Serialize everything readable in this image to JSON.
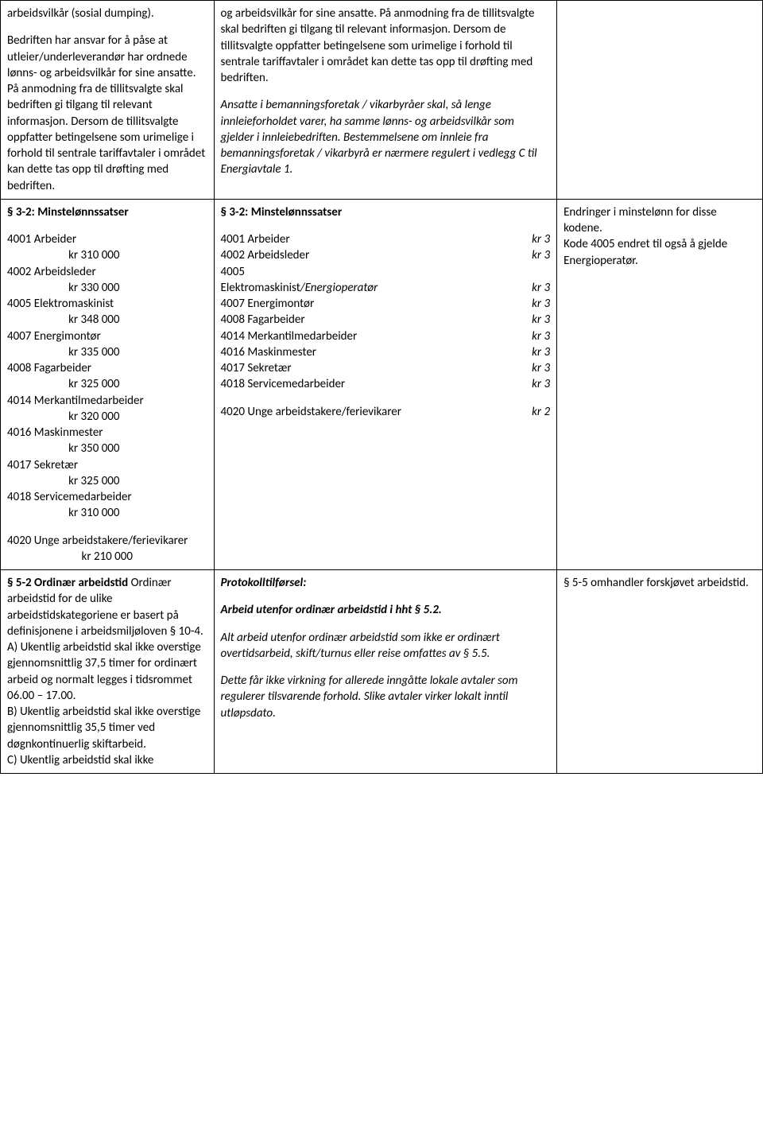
{
  "row1": {
    "col1_p1": "arbeidsvilkår (sosial dumping).",
    "col1_p2": "Bedriften har ansvar for å påse at utleier/underleverandør har ordnede lønns- og arbeidsvilkår for sine ansatte. På anmodning fra de tillitsvalgte skal bedriften gi tilgang til relevant informasjon. Dersom de tillitsvalgte oppfatter betingelsene som urimelige i forhold til sentrale tariffavtaler i området kan dette tas opp til drøfting med bedriften.",
    "col2_p1": "og arbeidsvilkår for sine ansatte. På anmodning fra de tillitsvalgte skal bedriften gi tilgang til relevant informasjon. Dersom de tillitsvalgte oppfatter betingelsene som urimelige i forhold til sentrale tariffavtaler i området kan dette tas opp til drøfting med bedriften.",
    "col2_p2": "Ansatte i bemanningsforetak / vikarbyråer skal, så lenge innleieforholdet varer, ha samme lønns- og arbeidsvilkår som gjelder i innleiebedriften. Bestemmelsene om innleie fra bemanningsforetak / vikarbyrå er nærmere regulert i vedlegg C til Energiavtale 1."
  },
  "row2": {
    "heading": "§ 3-2: Minstelønnssatser",
    "left_wages": [
      {
        "label": "4001 Arbeider",
        "value": "kr 310 000"
      },
      {
        "label": "4002 Arbeidsleder",
        "value": "kr 330 000"
      },
      {
        "label": "4005 Elektromaskinist",
        "value": "kr 348 000"
      },
      {
        "label": "4007 Energimontør",
        "value": "kr 335 000"
      },
      {
        "label": "4008 Fagarbeider",
        "value": "kr 325 000"
      },
      {
        "label": "4014 Merkantilmedarbeider",
        "value": "kr 320 000"
      },
      {
        "label": "4016 Maskinmester",
        "value": "kr 350 000"
      },
      {
        "label": "4017 Sekretær",
        "value": "kr 325 000"
      },
      {
        "label": "4018 Servicemedarbeider",
        "value": "kr 310 000"
      }
    ],
    "left_extra_label": "4020 Unge arbeidstakere/ferievikarer",
    "left_extra_value": "kr 210 000",
    "mid_wages": [
      {
        "label": "4001 Arbeider",
        "value": "kr 3"
      },
      {
        "label": "4002 Arbeidsleder",
        "value": "kr 3"
      }
    ],
    "mid_4005a": "4005",
    "mid_4005b_pre": "Elektromaskinist",
    "mid_4005b_ital": "/Energioperatør",
    "mid_4005_val": "kr 3",
    "mid_wages2": [
      {
        "label": "4007 Energimontør",
        "value": "kr 3"
      },
      {
        "label": "4008 Fagarbeider",
        "value": "kr 3"
      },
      {
        "label": "4014 Merkantilmedarbeider",
        "value": "kr 3"
      },
      {
        "label": "4016 Maskinmester",
        "value": "kr 3"
      },
      {
        "label": "4017 Sekretær",
        "value": "kr 3"
      },
      {
        "label": "4018 Servicemedarbeider",
        "value": "kr 3"
      }
    ],
    "mid_extra_label": "4020 Unge arbeidstakere/ferievikarer",
    "mid_extra_value": "kr 2",
    "col3_p1": "Endringer i minstelønn for disse kodene.",
    "col3_p2": "Kode 4005 endret til også å gjelde Energioperatør."
  },
  "row3": {
    "col1_heading": "§ 5-2 Ordinær arbeidstid",
    "col1_p1": "Ordinær arbeidstid for de ulike arbeidstidskategoriene er basert på definisjonene i arbeidsmiljøloven § 10-4.",
    "col1_p2": "A) Ukentlig arbeidstid skal ikke overstige gjennomsnittlig 37,5 timer for ordinært arbeid og normalt legges i tidsrommet 06.00 – 17.00.",
    "col1_p3": "B) Ukentlig arbeidstid skal ikke overstige gjennomsnittlig 35,5 timer ved døgnkontinuerlig skiftarbeid.",
    "col1_p4": "C) Ukentlig arbeidstid skal ikke",
    "col2_h1": "Protokolltilførsel:",
    "col2_h2": "Arbeid utenfor ordinær arbeidstid i hht § 5.2.",
    "col2_p1": "Alt arbeid utenfor ordinær arbeidstid som ikke er ordinært overtidsarbeid, skift/turnus eller reise omfattes av § 5.5.",
    "col2_p2": "Dette får ikke virkning for allerede inngåtte lokale avtaler som regulerer tilsvarende forhold. Slike avtaler virker lokalt inntil utløpsdato.",
    "col3_p1": "§ 5-5 omhandler forskjøvet arbeidstid."
  }
}
